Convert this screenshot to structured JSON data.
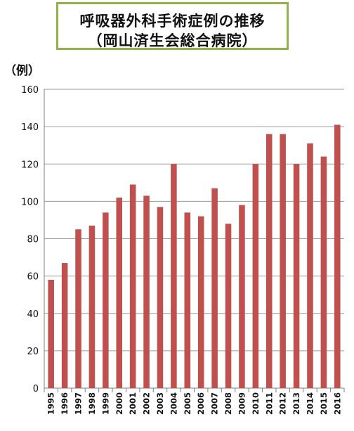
{
  "title_box": {
    "line1": "呼吸器外科手術症例の推移",
    "line2": "（岡山済生会総合病院）"
  },
  "unit_label": "（例）",
  "colors": {
    "bar": "#c0504d",
    "title_border": "#8fb34a",
    "axis": "#7f7f7f",
    "grid": "#9a9a9a"
  },
  "chart_data": {
    "type": "bar",
    "title": "呼吸器外科手術症例の推移（岡山済生会総合病院）",
    "ylabel": "（例）",
    "xlabel": "",
    "ylim": [
      0,
      160
    ],
    "yticks": [
      0,
      20,
      40,
      60,
      80,
      100,
      120,
      140,
      160
    ],
    "grid": true,
    "legend": "none",
    "categories": [
      "1995",
      "1996",
      "1997",
      "1998",
      "1999",
      "2000",
      "2001",
      "2002",
      "2003",
      "2004",
      "2005",
      "2006",
      "2007",
      "2008",
      "2009",
      "2010",
      "2011",
      "2012",
      "2013",
      "2014",
      "2015",
      "2016"
    ],
    "values": [
      58,
      67,
      85,
      87,
      94,
      102,
      109,
      103,
      97,
      120,
      94,
      92,
      107,
      88,
      98,
      120,
      136,
      136,
      120,
      131,
      124,
      141
    ]
  }
}
